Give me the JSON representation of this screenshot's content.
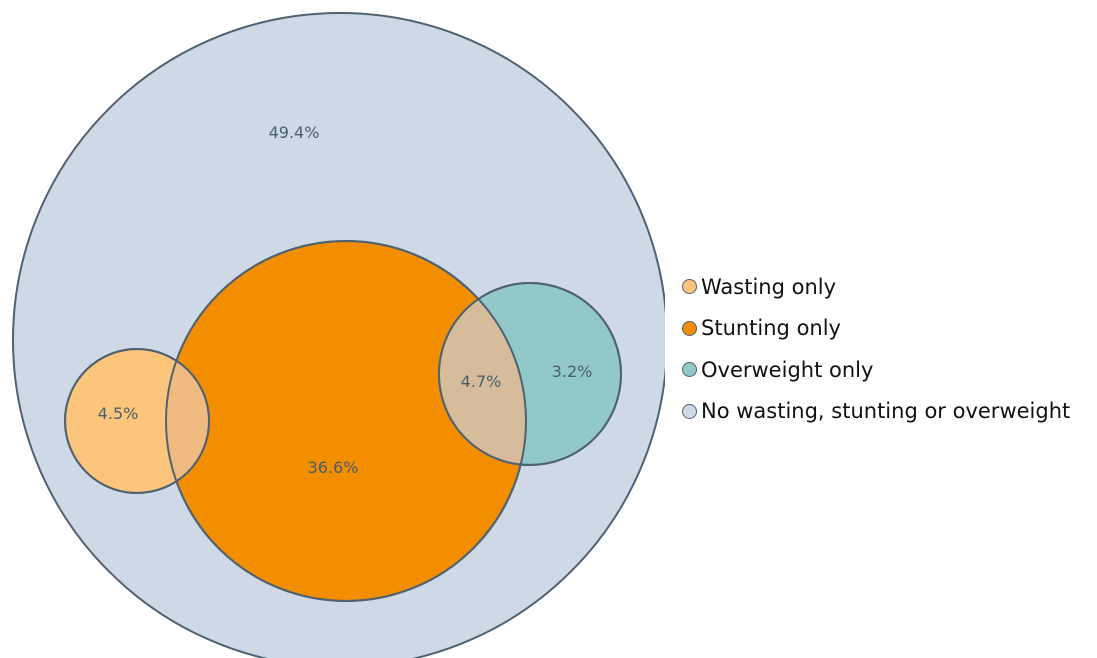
{
  "chart_data": {
    "type": "venn",
    "title": "",
    "sets": [
      {
        "name": "Wasting only",
        "color": "#fbc67b"
      },
      {
        "name": "Stunting only",
        "color": "#f28e00"
      },
      {
        "name": "Overweight only",
        "color": "#93c8c9"
      },
      {
        "name": "No wasting, stunting or overweight",
        "color": "#cfd9e5"
      }
    ],
    "regions": [
      {
        "label": "49.4%",
        "value": 49.4,
        "sets": [
          "No wasting, stunting or overweight"
        ]
      },
      {
        "label": "36.6%",
        "value": 36.6,
        "sets": [
          "Stunting only"
        ]
      },
      {
        "label": "4.5%",
        "value": 4.5,
        "sets": [
          "Wasting only"
        ]
      },
      {
        "label": "4.7%",
        "value": 4.7,
        "sets": [
          "Stunting only",
          "Overweight only"
        ]
      },
      {
        "label": "3.2%",
        "value": 3.2,
        "sets": [
          "Overweight only"
        ]
      }
    ],
    "overlap_colors": {
      "wasting_stunting": "#f0bb81",
      "stunting_overweight": "#d6bc9b"
    },
    "outline_color": "#4f6272",
    "legend_position": "right"
  }
}
